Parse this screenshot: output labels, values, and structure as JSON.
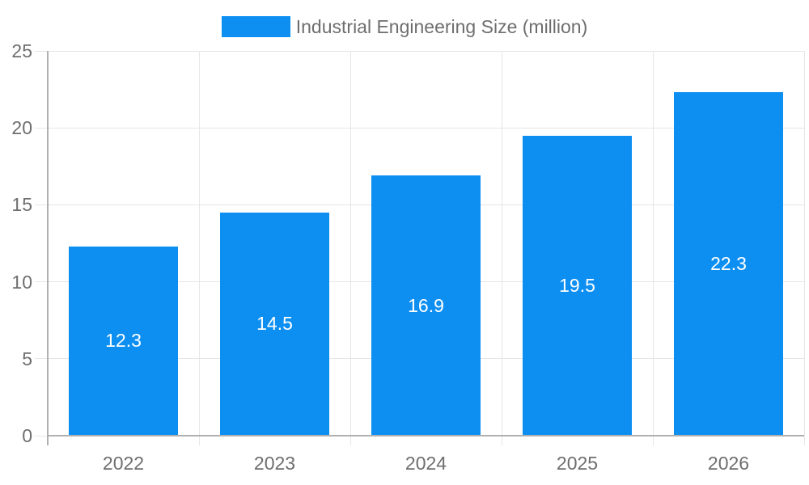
{
  "colors": {
    "bar": "#0d8ff2",
    "text": "#6e6e6e",
    "gridline": "#e6e6e6",
    "axis": "#b0b0b0",
    "value_label": "#ffffff",
    "background": "#ffffff"
  },
  "chart_data": {
    "type": "bar",
    "title": "",
    "legend": "Industrial Engineering Size (million)",
    "legend_position": "top-center",
    "categories": [
      "2022",
      "2023",
      "2024",
      "2025",
      "2026"
    ],
    "values": [
      12.3,
      14.5,
      16.9,
      19.5,
      22.3
    ],
    "bar_labels": [
      "12.3",
      "14.5",
      "16.9",
      "19.5",
      "22.3"
    ],
    "xlabel": "",
    "ylabel": "",
    "ylim": [
      0,
      25
    ],
    "yticks": [
      0,
      5,
      10,
      15,
      20,
      25
    ],
    "grid": true
  }
}
